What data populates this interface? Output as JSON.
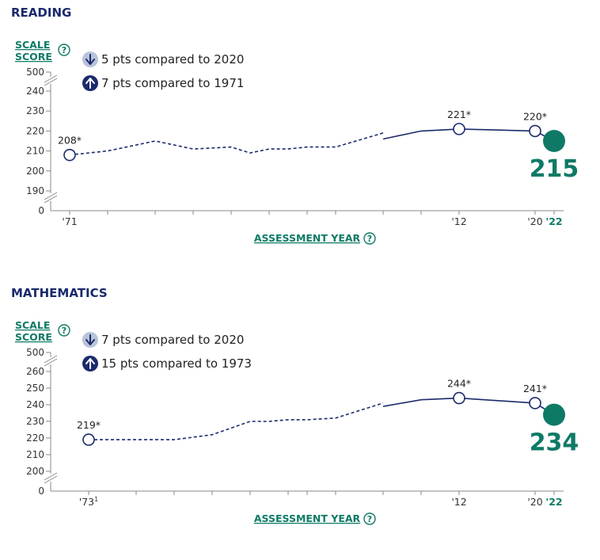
{
  "axis_label": "ASSESSMENT YEAR",
  "scale_label_line1": "SCALE",
  "scale_label_line2": "SCORE",
  "help_glyph": "?",
  "colors": {
    "navy": "#1b2a6b",
    "teal": "#0e7a66",
    "down_badge": "#b9c3d9"
  },
  "chart_data": [
    {
      "type": "line",
      "title": "READING",
      "ylabel": "SCALE SCORE",
      "xlabel": "ASSESSMENT YEAR",
      "ylim": [
        185,
        245
      ],
      "y_break_top": "500",
      "y_break_bottom": "0",
      "yticks": [
        190,
        200,
        210,
        220,
        230,
        240
      ],
      "x_tick_labels": [
        {
          "x": 1971,
          "label": "'71",
          "current": false
        },
        {
          "x": 2012,
          "label": "'12",
          "current": false
        },
        {
          "x": 2020,
          "label": "'20",
          "current": false
        },
        {
          "x": 2022,
          "label": "'22",
          "current": true
        }
      ],
      "comparisons": [
        {
          "direction": "down",
          "text": "5 pts compared to 2020"
        },
        {
          "direction": "up",
          "text": "7 pts compared to 1971"
        }
      ],
      "dashed_segment": [
        [
          1971,
          208
        ],
        [
          1975,
          210
        ],
        [
          1980,
          215
        ],
        [
          1984,
          211
        ],
        [
          1988,
          212
        ],
        [
          1990,
          209
        ],
        [
          1992,
          211
        ],
        [
          1994,
          211
        ],
        [
          1996,
          212
        ],
        [
          1999,
          212
        ],
        [
          2004,
          219
        ]
      ],
      "solid_segment": [
        [
          2004,
          216
        ],
        [
          2008,
          220
        ],
        [
          2012,
          221
        ],
        [
          2020,
          220
        ],
        [
          2022,
          215
        ]
      ],
      "labeled_points": [
        {
          "x": 1971,
          "y": 208,
          "label": "208*"
        },
        {
          "x": 2012,
          "y": 221,
          "label": "221*"
        },
        {
          "x": 2020,
          "y": 220,
          "label": "220*"
        }
      ],
      "current": {
        "x": 2022,
        "y": 215,
        "label": "215"
      }
    },
    {
      "type": "line",
      "title": "MATHEMATICS",
      "ylabel": "SCALE SCORE",
      "xlabel": "ASSESSMENT YEAR",
      "ylim": [
        195,
        265
      ],
      "y_break_top": "500",
      "y_break_bottom": "0",
      "yticks": [
        200,
        210,
        220,
        230,
        240,
        250,
        260
      ],
      "x_tick_labels": [
        {
          "x": 1973,
          "label": "'73",
          "current": false,
          "sup": "1"
        },
        {
          "x": 2012,
          "label": "'12",
          "current": false
        },
        {
          "x": 2020,
          "label": "'20",
          "current": false
        },
        {
          "x": 2022,
          "label": "'22",
          "current": true
        }
      ],
      "comparisons": [
        {
          "direction": "down",
          "text": "7 pts compared to 2020"
        },
        {
          "direction": "up",
          "text": "15 pts compared to 1973"
        }
      ],
      "dashed_segment": [
        [
          1973,
          219
        ],
        [
          1978,
          219
        ],
        [
          1982,
          219
        ],
        [
          1986,
          222
        ],
        [
          1990,
          230
        ],
        [
          1992,
          230
        ],
        [
          1994,
          231
        ],
        [
          1996,
          231
        ],
        [
          1999,
          232
        ],
        [
          2004,
          241
        ]
      ],
      "solid_segment": [
        [
          2004,
          239
        ],
        [
          2008,
          243
        ],
        [
          2012,
          244
        ],
        [
          2020,
          241
        ],
        [
          2022,
          234
        ]
      ],
      "labeled_points": [
        {
          "x": 1973,
          "y": 219,
          "label": "219*"
        },
        {
          "x": 2012,
          "y": 244,
          "label": "244*"
        },
        {
          "x": 2020,
          "y": 241,
          "label": "241*"
        }
      ],
      "current": {
        "x": 2022,
        "y": 234,
        "label": "234"
      }
    }
  ]
}
